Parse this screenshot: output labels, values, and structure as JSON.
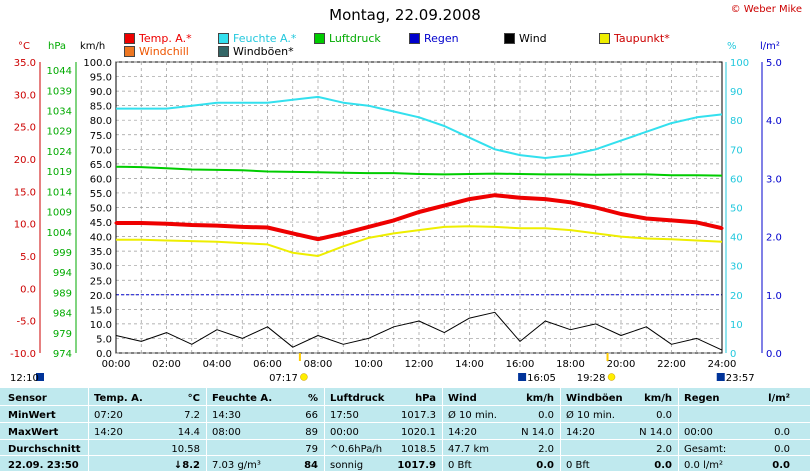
{
  "title": "Montag, 22.09.2008",
  "copyright": "© Weber Mike",
  "legend": [
    {
      "label": "Temp. A.*",
      "color": "#ee0000"
    },
    {
      "label": "Feuchte A.*",
      "color": "#33e0ee"
    },
    {
      "label": "Luftdruck",
      "color": "#00cc00"
    },
    {
      "label": "Regen",
      "color": "#0000cc"
    },
    {
      "label": "Wind",
      "color": "#000000"
    },
    {
      "label": "Taupunkt*",
      "color": "#eeee00"
    },
    {
      "label": "Windchill",
      "color": "#ee7722"
    },
    {
      "label": "Windböen*",
      "color": "#336666"
    }
  ],
  "units": {
    "celsius": "°C",
    "hpa": "hPa",
    "kmh": "km/h",
    "percent": "%",
    "rain": "l/m²"
  },
  "axis_celsius": [
    "35.0",
    "30.0",
    "25.0",
    "20.0",
    "15.0",
    "10.0",
    "5.0",
    "0.0",
    "-5.0",
    "-10.0"
  ],
  "axis_hpa": [
    "1044",
    "1039",
    "1034",
    "1029",
    "1024",
    "1019",
    "1014",
    "1009",
    "1004",
    "999",
    "994",
    "989",
    "984",
    "979",
    "974"
  ],
  "axis_kmh": [
    "100.0",
    "95.0",
    "90.0",
    "85.0",
    "80.0",
    "75.0",
    "70.0",
    "65.0",
    "60.0",
    "55.0",
    "50.0",
    "45.0",
    "40.0",
    "35.0",
    "30.0",
    "25.0",
    "20.0",
    "15.0",
    "10.0",
    "5.0",
    "0.0"
  ],
  "axis_percent": [
    "100",
    "90",
    "80",
    "70",
    "60",
    "50",
    "40",
    "30",
    "20",
    "10",
    "0"
  ],
  "axis_rain": [
    "5.0",
    "4.0",
    "3.0",
    "2.0",
    "1.0",
    "0.0"
  ],
  "x_ticks": [
    "00:00",
    "02:00",
    "04:00",
    "06:00",
    "08:00",
    "10:00",
    "12:00",
    "14:00",
    "16:00",
    "18:00",
    "20:00",
    "22:00",
    "24:00"
  ],
  "sun_events": [
    {
      "time": "12:10",
      "kind": "moon"
    },
    {
      "time": "07:17",
      "kind": "sunrise"
    },
    {
      "time": "16:05",
      "kind": "moon"
    },
    {
      "time": "19:28",
      "kind": "sunset"
    },
    {
      "time": "23:57",
      "kind": "moon"
    }
  ],
  "chart_data": {
    "type": "line",
    "x": [
      "00:00",
      "01:00",
      "02:00",
      "03:00",
      "04:00",
      "05:00",
      "06:00",
      "07:00",
      "08:00",
      "09:00",
      "10:00",
      "11:00",
      "12:00",
      "13:00",
      "14:00",
      "15:00",
      "16:00",
      "17:00",
      "18:00",
      "19:00",
      "20:00",
      "21:00",
      "22:00",
      "23:00",
      "24:00"
    ],
    "series": [
      {
        "name": "Temp. A.*",
        "axis": "celsius",
        "values": [
          10.1,
          10.1,
          10.0,
          9.8,
          9.7,
          9.5,
          9.4,
          8.5,
          7.6,
          8.5,
          9.5,
          10.5,
          11.8,
          12.8,
          13.8,
          14.4,
          14.0,
          13.8,
          13.3,
          12.5,
          11.5,
          10.8,
          10.5,
          10.2,
          9.3
        ]
      },
      {
        "name": "Feuchte A.*",
        "axis": "percent",
        "values": [
          84,
          84,
          84,
          85,
          86,
          86,
          86,
          87,
          88,
          86,
          85,
          83,
          81,
          78,
          74,
          70,
          68,
          67,
          68,
          70,
          73,
          76,
          79,
          81,
          82
        ]
      },
      {
        "name": "Luftdruck",
        "axis": "hpa",
        "values": [
          1020.1,
          1020.0,
          1019.7,
          1019.4,
          1019.3,
          1019.2,
          1018.9,
          1018.8,
          1018.7,
          1018.6,
          1018.5,
          1018.5,
          1018.3,
          1018.2,
          1018.3,
          1018.4,
          1018.3,
          1018.2,
          1018.2,
          1018.1,
          1018.2,
          1018.2,
          1018.0,
          1018.0,
          1017.9
        ]
      },
      {
        "name": "Taupunkt*",
        "axis": "celsius",
        "values": [
          7.5,
          7.5,
          7.4,
          7.3,
          7.2,
          7.0,
          6.8,
          5.5,
          5.0,
          6.5,
          7.8,
          8.5,
          9.0,
          9.5,
          9.6,
          9.5,
          9.3,
          9.3,
          9.0,
          8.5,
          8.0,
          7.7,
          7.6,
          7.4,
          7.2
        ]
      },
      {
        "name": "Wind",
        "axis": "kmh",
        "values": [
          6,
          4,
          7,
          3,
          8,
          5,
          9,
          2,
          6,
          3,
          5,
          9,
          11,
          7,
          12,
          14,
          4,
          11,
          8,
          10,
          6,
          9,
          3,
          5,
          1
        ]
      }
    ],
    "ylim_celsius": [
      -10,
      35
    ],
    "ylim_hpa": [
      974,
      1046
    ],
    "ylim_kmh": [
      0,
      100
    ],
    "ylim_percent": [
      0,
      100
    ],
    "ylim_rain": [
      0,
      5
    ],
    "grid": true
  },
  "table": {
    "col_sensor": {
      "h": "Sensor",
      "r1": "MinWert",
      "r2": "MaxWert",
      "r3": "Durchschnitt",
      "r4": "22.09.  23:50"
    },
    "col_temp": {
      "h": "Temp. A.",
      "u": "°C",
      "t1": "07:20",
      "v1": "7.2",
      "t2": "14:20",
      "v2": "14.4",
      "v3": "10.58",
      "v4": "↓8.2"
    },
    "col_hum": {
      "h": "Feuchte A.",
      "u": "%",
      "t1": "14:30",
      "v1": "66",
      "t2": "08:00",
      "v2": "89",
      "v3": "79",
      "t4": "7.03 g/m³",
      "v4": "84"
    },
    "col_press": {
      "h": "Luftdruck",
      "u": "hPa",
      "t1": "17:50",
      "v1": "1017.3",
      "t2": "00:00",
      "v2": "1020.1",
      "t3": "^0.6hPa/h",
      "v3": "1018.5",
      "t4": "sonnig",
      "v4": "1017.9"
    },
    "col_wind": {
      "h": "Wind",
      "u": "km/h",
      "t1": "Ø 10 min.",
      "v1": "0.0",
      "t2": "14:20",
      "v2": "N 14.0",
      "t3": "47.7 km",
      "v3": "2.0",
      "t4": "0 Bft",
      "v4": "0.0"
    },
    "col_gust": {
      "h": "Windböen",
      "u": "km/h",
      "t1": "Ø 10 min.",
      "v1": "0.0",
      "t2": "14:20",
      "v2": "N 14.0",
      "v3": "2.0",
      "t4": "0 Bft",
      "v4": "0.0"
    },
    "col_rain": {
      "h": "Regen",
      "u": "l/m²",
      "t2": "00:00",
      "v2": "0.0",
      "t3": "Gesamt:",
      "v3": "0.0",
      "t4": "0.0 l/m²",
      "v4": "0.0"
    }
  }
}
